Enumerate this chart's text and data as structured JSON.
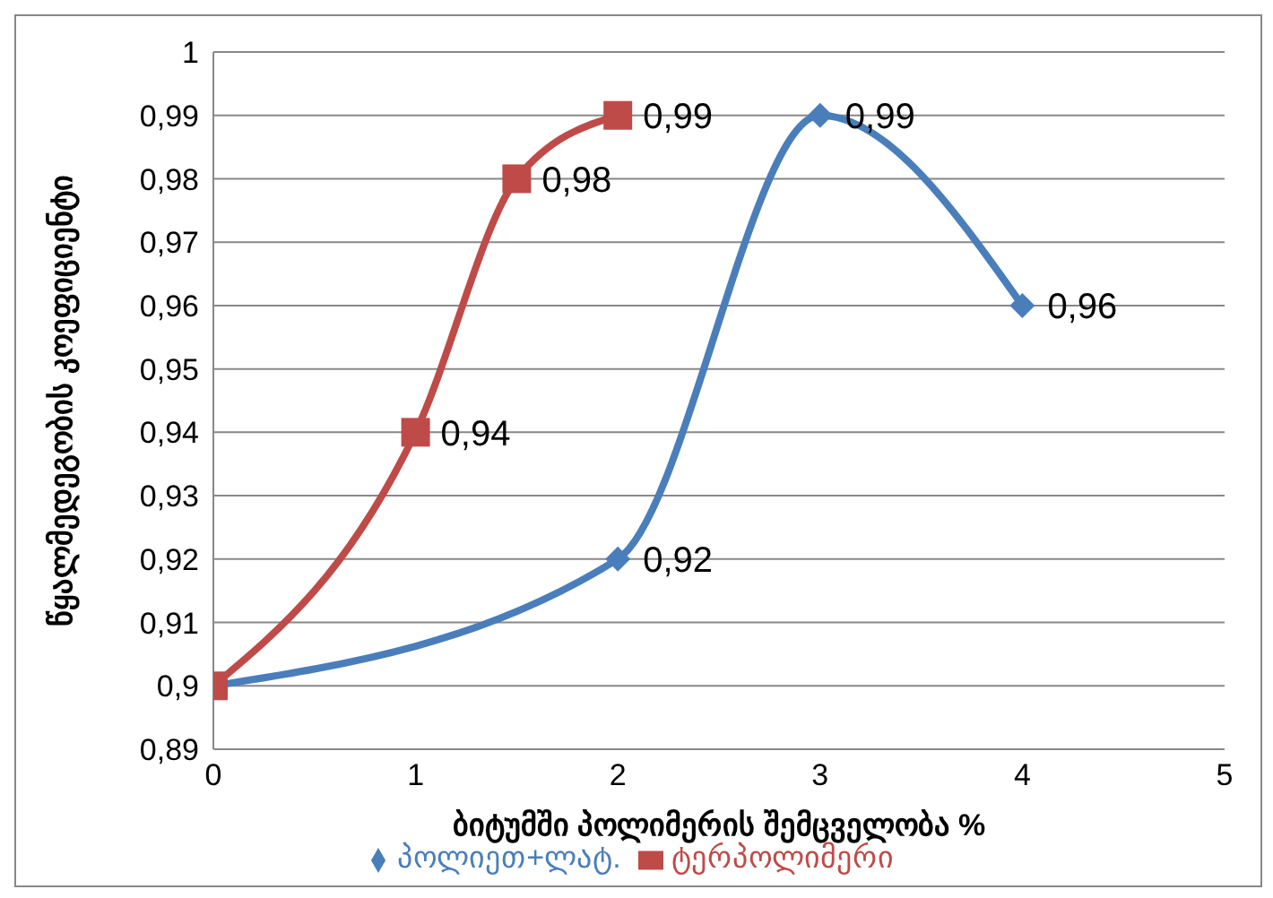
{
  "chart_data": {
    "type": "line",
    "xlabel": "ბიტუმში პოლიმერის შემცველობა %",
    "ylabel": "წყალმედეგობის კოეფიციენტი",
    "xlim": [
      0,
      5
    ],
    "xticks": [
      0,
      1,
      2,
      3,
      4,
      5
    ],
    "ylim": [
      0.89,
      1
    ],
    "yticks": [
      {
        "value": 0.89,
        "label": "0,89"
      },
      {
        "value": 0.9,
        "label": "0,9"
      },
      {
        "value": 0.91,
        "label": "0,91"
      },
      {
        "value": 0.92,
        "label": "0,92"
      },
      {
        "value": 0.93,
        "label": "0,93"
      },
      {
        "value": 0.94,
        "label": "0,94"
      },
      {
        "value": 0.95,
        "label": "0,95"
      },
      {
        "value": 0.96,
        "label": "0,96"
      },
      {
        "value": 0.97,
        "label": "0,97"
      },
      {
        "value": 0.98,
        "label": "0,98"
      },
      {
        "value": 0.99,
        "label": "0,99"
      },
      {
        "value": 1,
        "label": "1"
      }
    ],
    "grid": "y",
    "legend": "bottom",
    "series": [
      {
        "name": "პოლიეთ+ლატ.",
        "color": "#4a7ebb",
        "marker": "diamond",
        "x": [
          0,
          2,
          3,
          4
        ],
        "values": [
          0.9,
          0.92,
          0.99,
          0.96
        ],
        "value_labels": [
          null,
          "0,92",
          "0,99",
          "0,96"
        ]
      },
      {
        "name": "ტერპოლიმერი",
        "color": "#be4b48",
        "marker": "square",
        "x": [
          0,
          1,
          1.5,
          2
        ],
        "values": [
          0.9,
          0.94,
          0.98,
          0.99
        ],
        "value_labels": [
          null,
          "0,94",
          "0,98",
          "0,99"
        ]
      }
    ]
  }
}
